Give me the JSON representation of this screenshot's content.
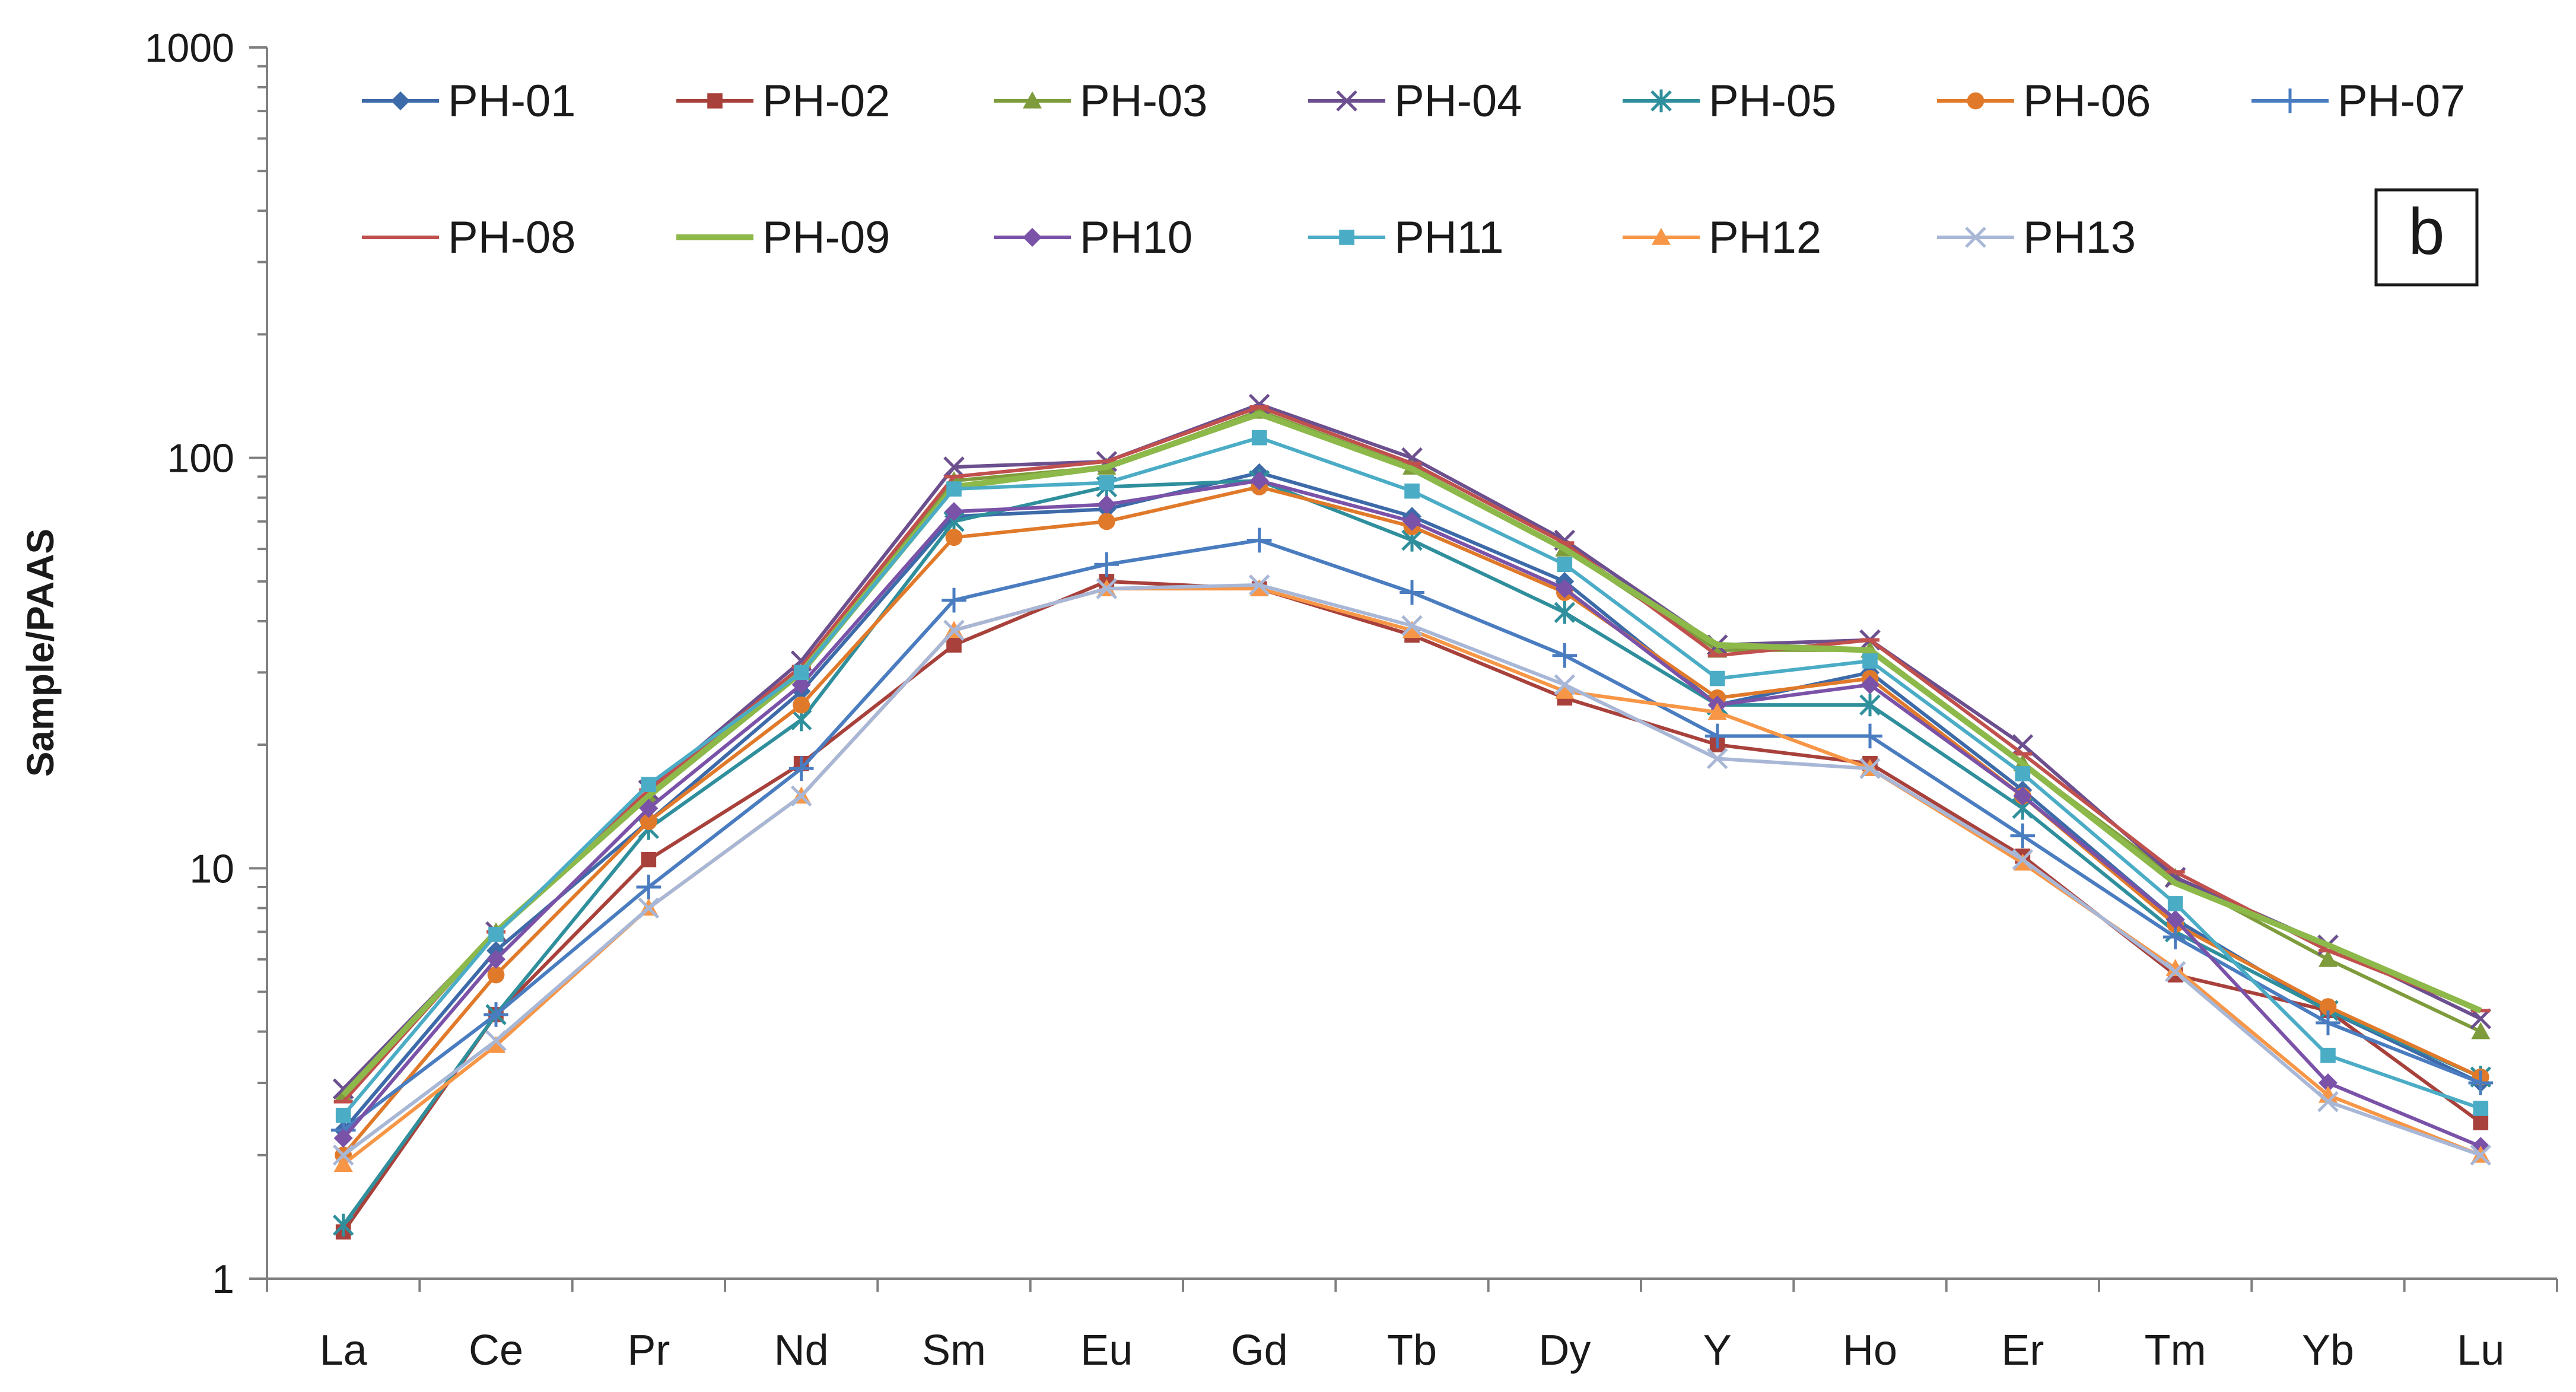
{
  "chart_data": {
    "type": "line",
    "title": "",
    "xlabel": "",
    "ylabel": "Sample/PAAS",
    "panel_label": "b",
    "y_scale": "log",
    "ylim": [
      1,
      1000
    ],
    "y_ticks": [
      "1",
      "10",
      "100",
      "1000"
    ],
    "grid": false,
    "legend_position": "top",
    "categories": [
      "La",
      "Ce",
      "Pr",
      "Nd",
      "Sm",
      "Eu",
      "Gd",
      "Tb",
      "Dy",
      "Y",
      "Ho",
      "Er",
      "Tm",
      "Yb",
      "Lu"
    ],
    "series": [
      {
        "name": "PH-01",
        "color": "#3d6aa8",
        "marker": "diamond",
        "values": [
          2.3,
          6.3,
          13.0,
          27,
          72,
          75,
          92,
          72,
          50,
          25,
          30,
          15.5,
          7.5,
          4.5,
          3.0
        ]
      },
      {
        "name": "PH-02",
        "color": "#a8413b",
        "marker": "square",
        "values": [
          1.3,
          4.4,
          10.5,
          18,
          35,
          50,
          48,
          37,
          26,
          20,
          18,
          10.7,
          5.5,
          4.5,
          2.4
        ]
      },
      {
        "name": "PH-03",
        "color": "#7e9c3b",
        "marker": "triangle",
        "values": [
          2.8,
          7.0,
          15.0,
          30,
          88,
          95,
          130,
          95,
          60,
          34,
          34,
          18,
          9.5,
          6.0,
          4.0
        ]
      },
      {
        "name": "PH-04",
        "color": "#6c4f8e",
        "marker": "x",
        "values": [
          2.9,
          7.0,
          15.5,
          32,
          95,
          98,
          135,
          100,
          63,
          35,
          36,
          20,
          9.5,
          6.5,
          4.3
        ]
      },
      {
        "name": "PH-05",
        "color": "#2f8f9c",
        "marker": "asterisk",
        "values": [
          1.35,
          4.4,
          12.5,
          23,
          70,
          85,
          88,
          63,
          42,
          25,
          25,
          14,
          7.0,
          4.5,
          3.1
        ]
      },
      {
        "name": "PH-06",
        "color": "#e07a2a",
        "marker": "circle",
        "values": [
          2.0,
          5.5,
          13.0,
          25,
          64,
          70,
          85,
          68,
          47,
          26,
          29,
          15,
          7.3,
          4.6,
          3.1
        ]
      },
      {
        "name": "PH-07",
        "color": "#4a7cc0",
        "marker": "plus",
        "values": [
          2.3,
          4.4,
          9.0,
          17.5,
          45,
          55,
          63,
          47,
          33,
          21,
          21,
          12,
          6.8,
          4.2,
          3.0
        ]
      },
      {
        "name": "PH-08",
        "color": "#c0504d",
        "marker": "dash",
        "values": [
          2.7,
          7.0,
          15.5,
          31,
          90,
          98,
          133,
          97,
          62,
          33,
          36,
          19,
          9.8,
          6.3,
          4.5
        ]
      },
      {
        "name": "PH-09",
        "color": "#8db84a",
        "marker": "none",
        "values": [
          2.8,
          7.0,
          15.0,
          30,
          85,
          95,
          128,
          94,
          60,
          35,
          34,
          18,
          9.2,
          6.5,
          4.5
        ]
      },
      {
        "name": "PH10",
        "color": "#7a52a8",
        "marker": "diamond",
        "values": [
          2.2,
          6.0,
          14.0,
          28,
          74,
          77,
          88,
          70,
          48,
          25,
          28,
          15,
          7.5,
          3.0,
          2.1
        ]
      },
      {
        "name": "PH11",
        "color": "#4bacc6",
        "marker": "square",
        "values": [
          2.5,
          6.9,
          16.0,
          30,
          84,
          87,
          112,
          83,
          55,
          29,
          32,
          17,
          8.2,
          3.5,
          2.6
        ]
      },
      {
        "name": "PH12",
        "color": "#f79646",
        "marker": "triangle",
        "values": [
          1.9,
          3.7,
          8.0,
          15,
          38,
          48,
          48,
          38,
          27,
          24,
          17.5,
          10.3,
          5.7,
          2.8,
          2.0
        ]
      },
      {
        "name": "PH13",
        "color": "#a9b7d6",
        "marker": "x",
        "values": [
          2.0,
          3.8,
          8.0,
          15,
          38,
          48,
          49,
          39,
          28,
          18.5,
          17.5,
          10.5,
          5.6,
          2.7,
          2.0
        ]
      }
    ]
  }
}
